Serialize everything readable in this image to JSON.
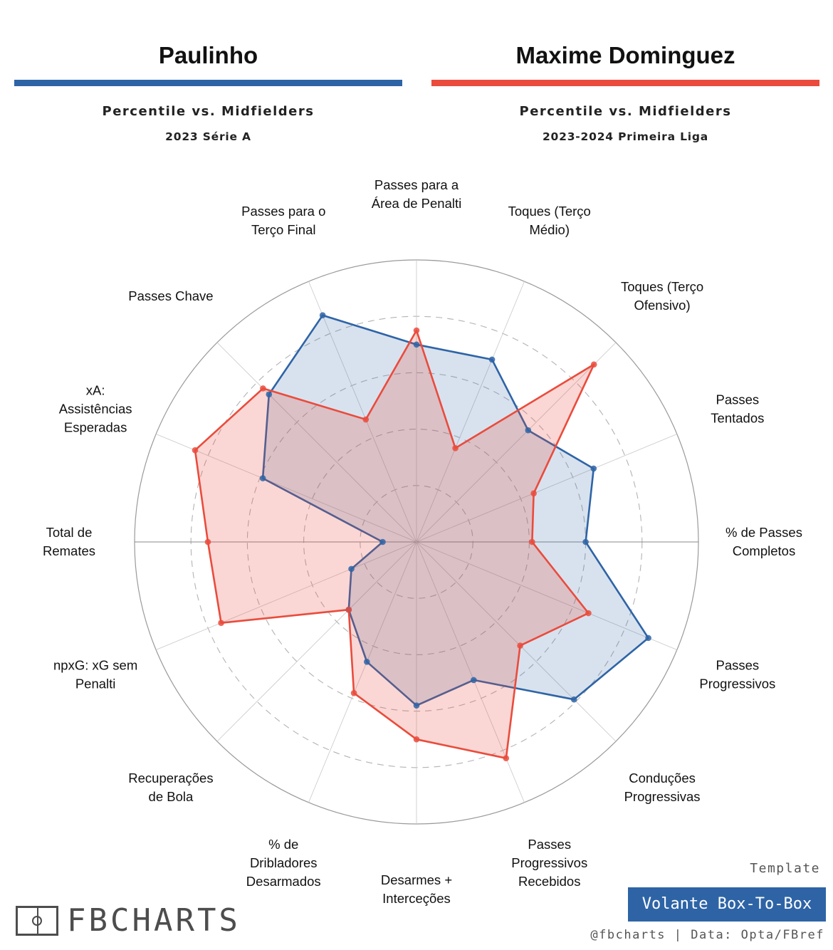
{
  "header": {
    "left": {
      "name": "Paulinho",
      "subtitle": "Percentile vs. Midfielders",
      "season": "2023 Série A",
      "color": "#2e64a6"
    },
    "right": {
      "name": "Maxime Dominguez",
      "subtitle": "Percentile vs. Midfielders",
      "season": "2023-2024 Primeira Liga",
      "color": "#ea4b3c"
    }
  },
  "chart_data": {
    "type": "radar",
    "scale": [
      0,
      100
    ],
    "rings": [
      20,
      40,
      60,
      80,
      100
    ],
    "axes": [
      "Passes para a\nÁrea de Penalti",
      "Toques (Terço\nMédio)",
      "Toques (Terço\nOfensivo)",
      "Passes\nTentados",
      "% de Passes\nCompletos",
      "Passes\nProgressivos",
      "Conduções\nProgressivas",
      "Passes\nProgressivos\nRecebidos",
      "Desarmes +\nInterceções",
      "% de\nDribladores\nDesarmados",
      "Recuperações\nde Bola",
      "npxG: xG sem\nPenalti",
      "Total de\nRemates",
      "xA:\nAssistências\nEsperadas",
      "Passes Chave",
      "Passes para o\nTerço Final"
    ],
    "series": [
      {
        "name": "Paulinho",
        "color": "#2e64a6",
        "values": [
          70,
          70,
          56,
          68,
          60,
          89,
          79,
          53,
          58,
          46,
          34,
          25,
          12,
          59,
          74,
          87
        ]
      },
      {
        "name": "Maxime Dominguez",
        "color": "#ea4b3c",
        "values": [
          75,
          36,
          89,
          45,
          41,
          66,
          52,
          83,
          70,
          58,
          34,
          75,
          74,
          85,
          77,
          47
        ]
      }
    ]
  },
  "footer": {
    "logo_text": "FBCHARTS",
    "template_label": "Template",
    "template_name": "Volante Box-To-Box",
    "credits": "@fbcharts | Data: Opta/FBref"
  }
}
